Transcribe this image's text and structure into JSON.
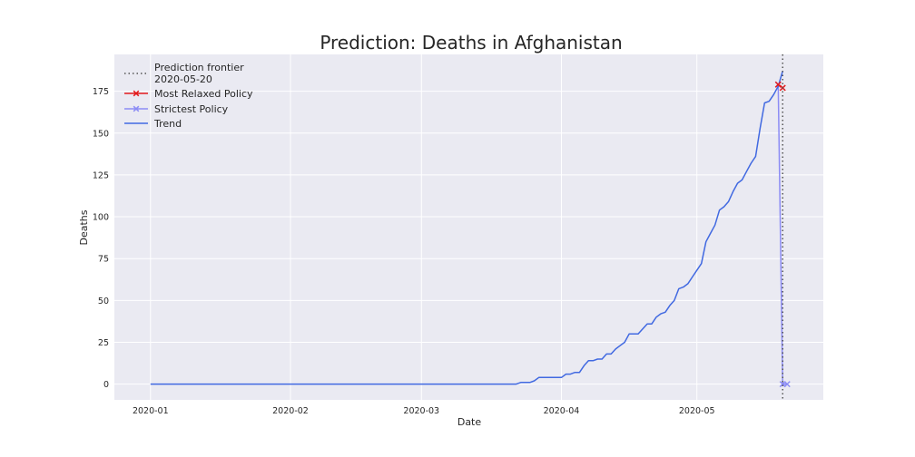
{
  "chart_data": {
    "type": "line",
    "title": "Prediction: Deaths in Afghanistan",
    "xlabel": "Date",
    "ylabel": "Deaths",
    "xlim": [
      "2019-12-24",
      "2020-05-29"
    ],
    "ylim": [
      -9.4,
      197
    ],
    "x_ticks": [
      "2020-01",
      "2020-02",
      "2020-03",
      "2020-04",
      "2020-05"
    ],
    "y_ticks": [
      0,
      25,
      50,
      75,
      100,
      125,
      150,
      175
    ],
    "grid": true,
    "legend_position": "top-left",
    "frontier": {
      "date": "2020-05-20",
      "label": "Prediction frontier\n 2020-05-20"
    },
    "series": [
      {
        "name": "Trend",
        "color": "#4169e1",
        "points": [
          [
            "2020-01-01",
            0
          ],
          [
            "2020-03-22",
            0
          ],
          [
            "2020-03-23",
            1
          ],
          [
            "2020-03-25",
            1
          ],
          [
            "2020-03-26",
            2
          ],
          [
            "2020-03-27",
            4
          ],
          [
            "2020-03-31",
            4
          ],
          [
            "2020-04-01",
            4
          ],
          [
            "2020-04-02",
            6
          ],
          [
            "2020-04-03",
            6
          ],
          [
            "2020-04-04",
            7
          ],
          [
            "2020-04-05",
            7
          ],
          [
            "2020-04-06",
            11
          ],
          [
            "2020-04-07",
            14
          ],
          [
            "2020-04-08",
            14
          ],
          [
            "2020-04-09",
            15
          ],
          [
            "2020-04-10",
            15
          ],
          [
            "2020-04-11",
            18
          ],
          [
            "2020-04-12",
            18
          ],
          [
            "2020-04-13",
            21
          ],
          [
            "2020-04-14",
            23
          ],
          [
            "2020-04-15",
            25
          ],
          [
            "2020-04-16",
            30
          ],
          [
            "2020-04-17",
            30
          ],
          [
            "2020-04-18",
            30
          ],
          [
            "2020-04-19",
            33
          ],
          [
            "2020-04-20",
            36
          ],
          [
            "2020-04-21",
            36
          ],
          [
            "2020-04-22",
            40
          ],
          [
            "2020-04-23",
            42
          ],
          [
            "2020-04-24",
            43
          ],
          [
            "2020-04-25",
            47
          ],
          [
            "2020-04-26",
            50
          ],
          [
            "2020-04-27",
            57
          ],
          [
            "2020-04-28",
            58
          ],
          [
            "2020-04-29",
            60
          ],
          [
            "2020-04-30",
            64
          ],
          [
            "2020-05-01",
            68
          ],
          [
            "2020-05-02",
            72
          ],
          [
            "2020-05-03",
            85
          ],
          [
            "2020-05-04",
            90
          ],
          [
            "2020-05-05",
            95
          ],
          [
            "2020-05-06",
            104
          ],
          [
            "2020-05-07",
            106
          ],
          [
            "2020-05-08",
            109
          ],
          [
            "2020-05-09",
            115
          ],
          [
            "2020-05-10",
            120
          ],
          [
            "2020-05-11",
            122
          ],
          [
            "2020-05-12",
            127
          ],
          [
            "2020-05-13",
            132
          ],
          [
            "2020-05-14",
            136
          ],
          [
            "2020-05-15",
            153
          ],
          [
            "2020-05-16",
            168
          ],
          [
            "2020-05-17",
            169
          ],
          [
            "2020-05-18",
            173
          ],
          [
            "2020-05-19",
            178
          ],
          [
            "2020-05-20",
            187
          ]
        ]
      },
      {
        "name": "Most Relaxed Policy",
        "color": "#e31a1c",
        "marker": "x",
        "points": [
          [
            "2020-05-19",
            179
          ],
          [
            "2020-05-20",
            177
          ]
        ]
      },
      {
        "name": "Strictest Policy",
        "color": "#8c8cf5",
        "marker": "x",
        "points": [
          [
            "2020-05-19",
            179
          ],
          [
            "2020-05-20",
            0
          ],
          [
            "2020-05-21",
            0
          ]
        ]
      }
    ]
  }
}
